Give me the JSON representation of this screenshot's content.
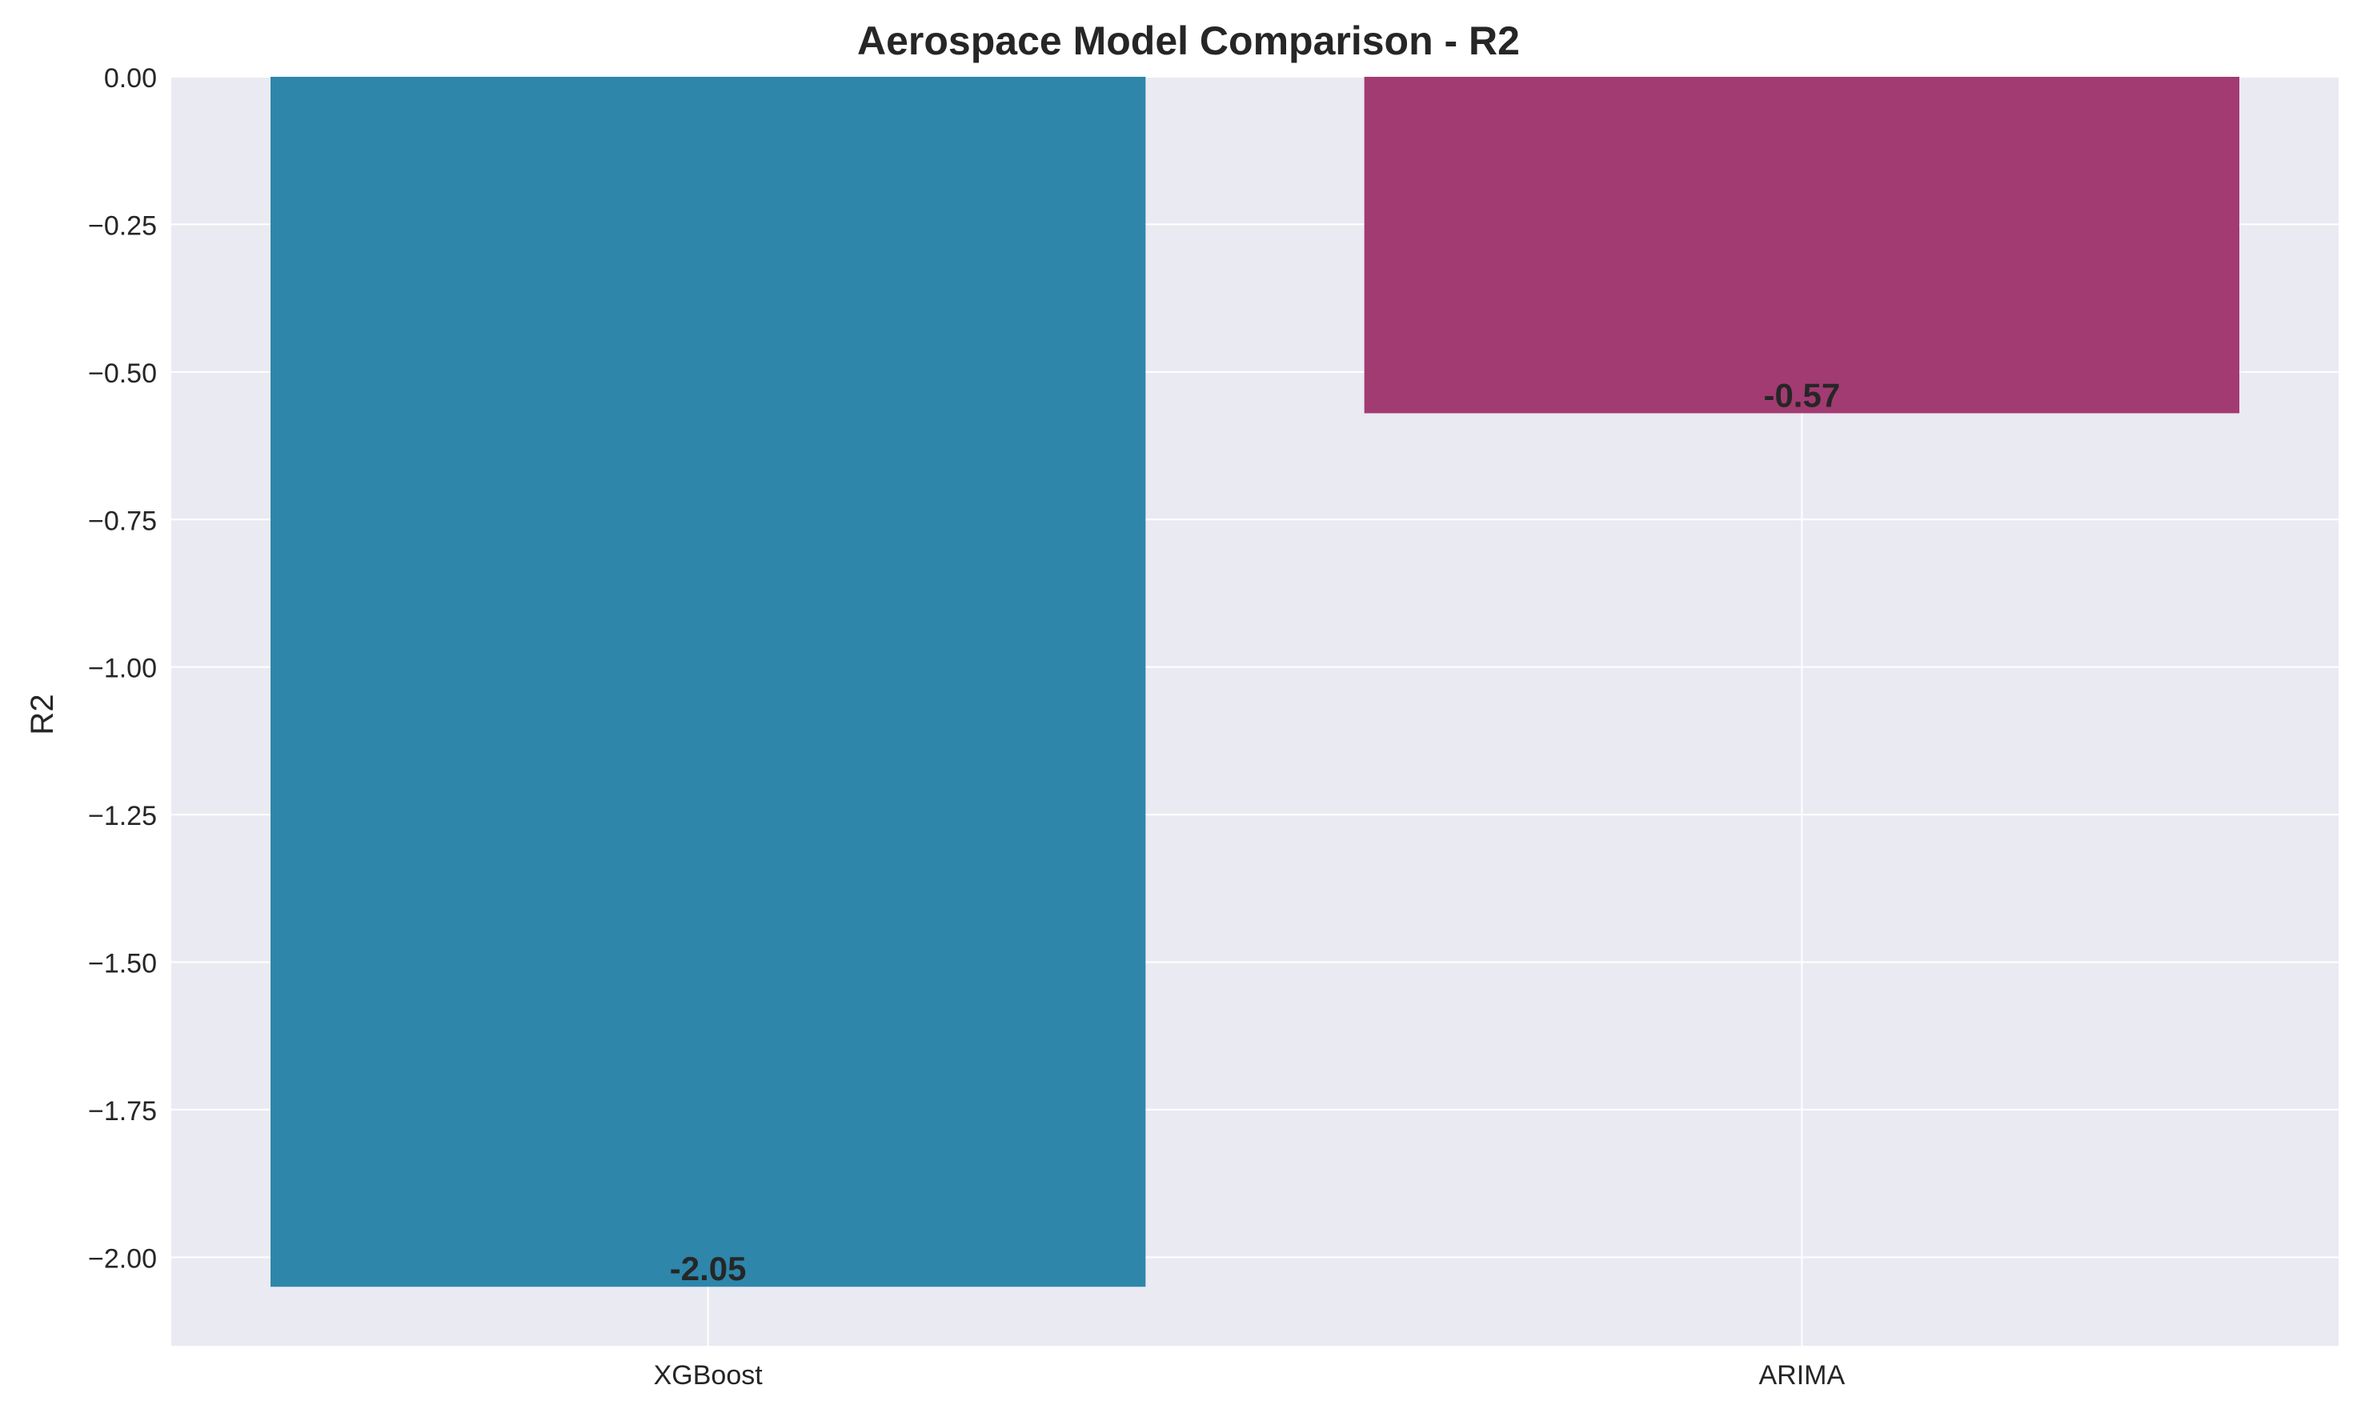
{
  "chart_data": {
    "type": "bar",
    "title": "Aerospace Model Comparison - R2",
    "xlabel": "",
    "ylabel": "R2",
    "categories": [
      "XGBoost",
      "ARIMA"
    ],
    "values": [
      -2.05,
      -0.57
    ],
    "value_labels": [
      "-2.05",
      "-0.57"
    ],
    "colors": [
      "#2e86ab",
      "#a23b72"
    ],
    "ylim": [
      -2.15,
      0.0
    ],
    "yticks": [
      0.0,
      -0.25,
      -0.5,
      -0.75,
      -1.0,
      -1.25,
      -1.5,
      -1.75,
      -2.0
    ],
    "ytick_labels": [
      "0.00",
      "−0.25",
      "−0.50",
      "−0.75",
      "−1.00",
      "−1.25",
      "−1.50",
      "−1.75",
      "−2.00"
    ],
    "grid": true,
    "background": "#eaeaf2",
    "grid_color": "#ffffff"
  }
}
